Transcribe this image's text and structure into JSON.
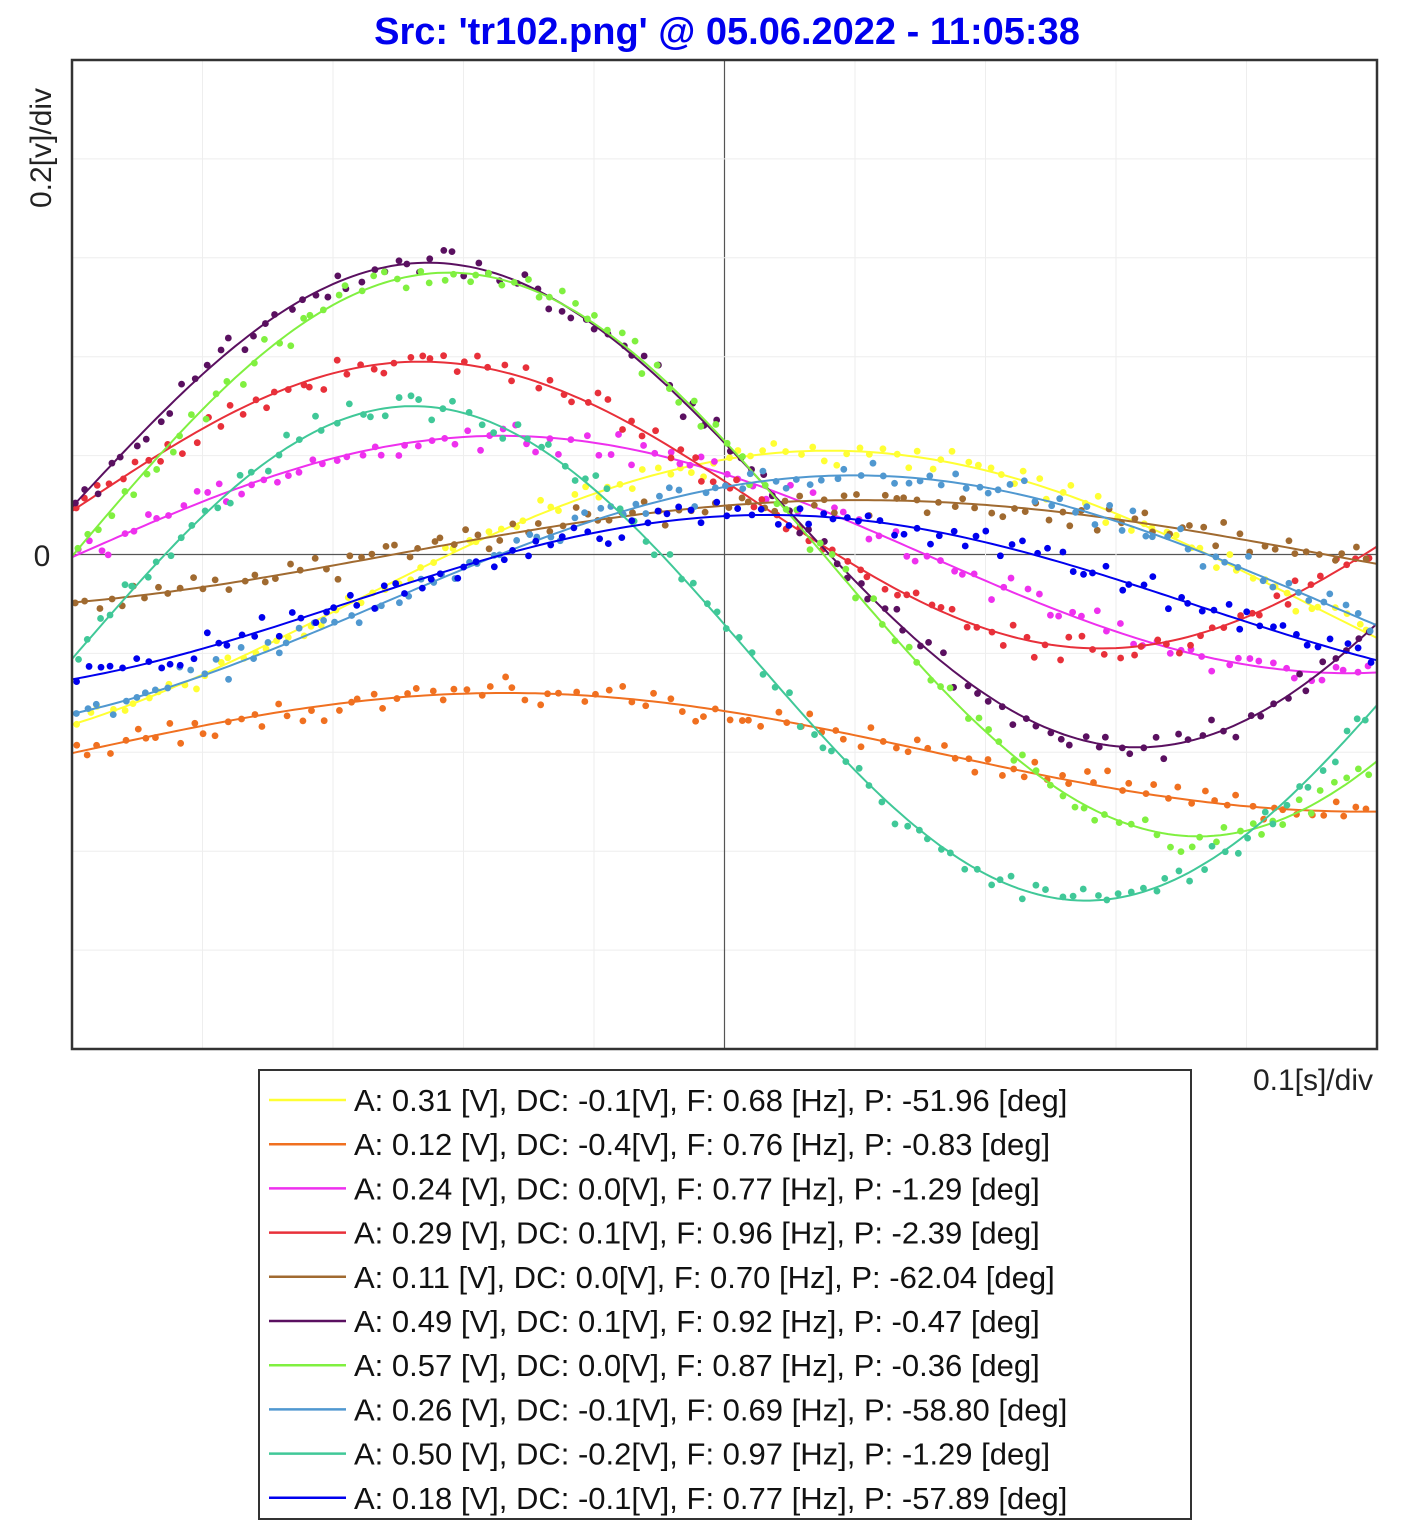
{
  "chart_data": {
    "type": "line",
    "title": "Src: 'tr102.png' @ 05.06.2022 - 11:05:38",
    "title_color": "#0000ee",
    "ylabel": "0.2[v]/div",
    "xlabel": "0.1[s]/div",
    "y_zero_label": "0",
    "xlim": [
      0,
      1.0
    ],
    "ylim": [
      -1.0,
      1.0
    ],
    "x_div": 0.1,
    "y_div": 0.2,
    "grid": true,
    "markers": "dots around fitted sine curves",
    "legend_position": "bottom",
    "series": [
      {
        "label": "A: 0.31 [V], DC: -0.1[V], F: 0.68 [Hz], P: -51.96 [deg]",
        "A": 0.31,
        "DC": -0.1,
        "F": 0.68,
        "P": -51.96,
        "color": "#ffff33"
      },
      {
        "label": "A: 0.12 [V], DC: -0.4[V], F: 0.76 [Hz], P: -0.83 [deg]",
        "A": 0.12,
        "DC": -0.4,
        "F": 0.76,
        "P": -0.83,
        "color": "#f07020"
      },
      {
        "label": "A: 0.24 [V], DC: 0.0[V], F: 0.77 [Hz], P: -1.29 [deg]",
        "A": 0.24,
        "DC": 0.0,
        "F": 0.77,
        "P": -1.29,
        "color": "#ee30ee"
      },
      {
        "label": "A: 0.29 [V], DC: 0.1[V], F: 0.96 [Hz], P: -2.39 [deg]",
        "A": 0.29,
        "DC": 0.1,
        "F": 0.96,
        "P": -2.39,
        "color": "#e8303a"
      },
      {
        "label": "A: 0.11 [V], DC: 0.0[V], F: 0.70 [Hz], P: -62.04 [deg]",
        "A": 0.11,
        "DC": 0.0,
        "F": 0.7,
        "P": -62.04,
        "color": "#a06a30"
      },
      {
        "label": "A: 0.49 [V], DC: 0.1[V], F: 0.92 [Hz], P: -0.47 [deg]",
        "A": 0.49,
        "DC": 0.1,
        "F": 0.92,
        "P": -0.47,
        "color": "#5a1060"
      },
      {
        "label": "A: 0.57 [V], DC: 0.0[V], F: 0.87 [Hz], P: -0.36 [deg]",
        "A": 0.57,
        "DC": 0.0,
        "F": 0.87,
        "P": -0.36,
        "color": "#80f040"
      },
      {
        "label": "A: 0.26 [V], DC: -0.1[V], F: 0.69 [Hz], P: -58.80 [deg]",
        "A": 0.26,
        "DC": -0.1,
        "F": 0.69,
        "P": -58.8,
        "color": "#5098d0"
      },
      {
        "label": "A: 0.50 [V], DC: -0.2[V], F: 0.97 [Hz], P: -1.29 [deg]",
        "A": 0.5,
        "DC": -0.2,
        "F": 0.97,
        "P": -1.29,
        "color": "#40c898"
      },
      {
        "label": "A: 0.18 [V], DC: -0.1[V], F: 0.77 [Hz], P: -57.89 [deg]",
        "A": 0.18,
        "DC": -0.1,
        "F": 0.77,
        "P": -57.89,
        "color": "#0000ee"
      }
    ]
  }
}
